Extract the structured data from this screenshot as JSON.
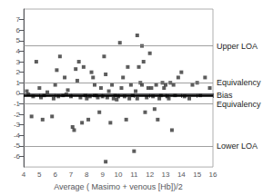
{
  "chart_data": {
    "type": "scatter",
    "xlabel": "Average ( Masimo + venous [Hb])/2",
    "xlim": [
      4,
      16
    ],
    "ylim": [
      -7,
      8
    ],
    "xticks": [
      4,
      5,
      6,
      7,
      8,
      9,
      10,
      11,
      12,
      13,
      14,
      15,
      16
    ],
    "yticks": [
      -6,
      -5,
      -4,
      -3,
      -2,
      -1,
      0,
      1,
      2,
      3,
      4,
      5,
      6,
      7
    ],
    "grid": false,
    "color": "#333333",
    "marker": "square",
    "x": [
      4.2,
      4.3,
      4.5,
      4.6,
      4.8,
      5.0,
      5.1,
      5.2,
      5.3,
      5.5,
      5.8,
      5.9,
      6.0,
      6.1,
      6.2,
      6.3,
      6.5,
      6.6,
      6.7,
      6.8,
      7.0,
      7.1,
      7.2,
      7.3,
      7.4,
      7.5,
      7.6,
      7.7,
      7.8,
      7.9,
      8.0,
      8.1,
      8.2,
      8.3,
      8.4,
      8.5,
      8.6,
      8.7,
      8.8,
      8.9,
      9.0,
      9.1,
      9.2,
      9.3,
      9.4,
      9.5,
      9.6,
      9.7,
      9.8,
      9.9,
      10.0,
      10.1,
      10.2,
      10.3,
      10.4,
      10.5,
      10.6,
      10.7,
      10.8,
      10.9,
      11.0,
      11.1,
      11.2,
      11.3,
      11.4,
      11.5,
      11.6,
      11.7,
      11.8,
      11.9,
      12.0,
      12.1,
      12.2,
      12.3,
      12.4,
      12.5,
      12.6,
      12.7,
      12.8,
      12.9,
      13.0,
      13.1,
      13.2,
      13.3,
      13.4,
      13.5,
      13.6,
      13.8,
      14.0,
      14.2,
      14.5,
      14.7,
      15.0,
      15.2,
      15.5,
      15.8,
      11.2,
      11.5,
      8.5,
      9.2
    ],
    "values": [
      0.2,
      -0.1,
      -2.2,
      -0.3,
      3.0,
      0.5,
      -0.4,
      -2.5,
      -0.2,
      0.1,
      -2.2,
      -0.5,
      0.8,
      2.2,
      -0.3,
      3.5,
      -0.2,
      1.5,
      -0.1,
      0.3,
      -0.3,
      -3.2,
      -3.5,
      2.3,
      1.2,
      3.0,
      -0.4,
      -2.8,
      2.5,
      -0.2,
      -0.5,
      -2.5,
      -0.3,
      2.0,
      1.5,
      0.8,
      -0.2,
      -0.4,
      -1.8,
      0.5,
      -0.3,
      3.5,
      1.8,
      -0.4,
      0.2,
      -2.8,
      0.8,
      -0.5,
      -0.2,
      -0.6,
      -0.3,
      4.8,
      0.5,
      1.5,
      -0.3,
      -2.5,
      2.5,
      -0.5,
      0.8,
      -0.2,
      -5.5,
      0.2,
      -0.5,
      2.5,
      1.0,
      0.8,
      3.0,
      -1.8,
      -0.4,
      0.5,
      3.8,
      0.5,
      -0.3,
      -1.5,
      0.8,
      -2.5,
      -0.5,
      -0.2,
      1.0,
      0.5,
      0.8,
      -0.3,
      -0.5,
      1.0,
      -3.5,
      0.8,
      -0.2,
      1.5,
      2.0,
      -0.3,
      -0.5,
      0.8,
      1.0,
      -0.2,
      1.5,
      0.5,
      5.5,
      4.5,
      -0.2,
      -6.5
    ],
    "annotations": [
      {
        "y": 4.5,
        "text": "Upper LOA",
        "color": "#888888",
        "line_style": "thin"
      },
      {
        "y": 1.0,
        "text": "Equivalency",
        "color": "#888888",
        "line_style": "thin"
      },
      {
        "y": -0.2,
        "text": "Bias",
        "color": "#000000",
        "line_style": "thick"
      },
      {
        "y": -1.0,
        "text": "Equivalency",
        "color": "#888888",
        "line_style": "thin"
      },
      {
        "y": -5.0,
        "text": "Lower LOA",
        "color": "#888888",
        "line_style": "thin"
      }
    ]
  }
}
